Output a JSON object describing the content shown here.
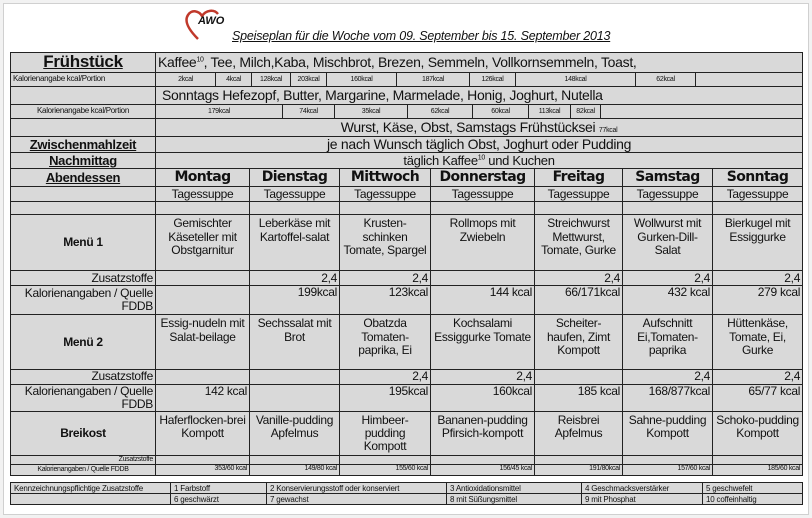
{
  "header": {
    "logo": "AWO",
    "title": "Speiseplan für die Woche vom 09. September  bis 15. September  2013",
    "brand_color": "#c0392b"
  },
  "breakfast": {
    "label": "Frühstück",
    "line1": "Kaffee",
    "line1_sup": "10",
    "line1_rest": ",  Tee, Milch,Kaba, Mischbrot, Brezen,  Semmeln, Vollkornsemmeln, Toast,",
    "kcal_label": "Kalorienangabe kcal/Portion",
    "kcal1": [
      "2kcal",
      "4kcal",
      "128kcal",
      "203kcal",
      "160kcal",
      "187kcal",
      "126kcal",
      "148kcal",
      "62kcal"
    ],
    "line2": "Sonntags Hefezopf, Butter, Margarine, Marmelade, Honig, Joghurt, Nutella",
    "kcal2": [
      "179kcal",
      "74kcal",
      "35kcal",
      "62kcal",
      "60kcal",
      "113kcal",
      "82kcal"
    ],
    "line3": "Wurst, Käse, Obst, Samstags Frühstücksei",
    "line3_kcal": "77kcal"
  },
  "zwischen": {
    "label": "Zwischenmahlzeit",
    "text": "je nach Wunsch täglich Obst, Joghurt oder Pudding"
  },
  "nachmittag": {
    "label": "Nachmittag",
    "text": "täglich Kaffee",
    "sup": "10",
    "rest": " und Kuchen"
  },
  "abend": {
    "label": "Abendessen",
    "days": [
      "Montag",
      "Dienstag",
      "Mittwoch",
      "Donnerstag",
      "Freitag",
      "Samstag",
      "Sonntag"
    ],
    "soup": [
      "Tagessuppe",
      "Tagessuppe",
      "Tagessuppe",
      "Tagessuppe",
      "Tagessuppe",
      "Tagessuppe",
      "Tagessuppe"
    ],
    "zusatz_label": "Zusatzstoffe",
    "kal_label": "Kalorienangaben / Quelle FDDB",
    "menu1": {
      "label": "Menü 1",
      "items": [
        "Gemischter Käseteller mit Obstgarnitur",
        "Leberkäse mit Kartoffel-salat",
        "Krusten-schinken Tomate, Spargel",
        "Rollmops mit Zwiebeln",
        "Streichwurst Mettwurst, Tomate, Gurke",
        "Wollwurst mit Gurken-Dill-Salat",
        "Bierkugel mit Essiggurke"
      ],
      "zusatz": [
        "",
        "2,4",
        "2,4",
        "",
        "2,4",
        "2,4",
        "2,4"
      ],
      "kcal": [
        "",
        "199kcal",
        "123kcal",
        "144 kcal",
        "66/171kcal",
        "432 kcal",
        "279 kcal"
      ]
    },
    "menu2": {
      "label": "Menü 2",
      "items": [
        "Essig-nudeln mit Salat-beilage",
        "Sechssalat mit Brot",
        "Obatzda Tomaten-paprika, Ei",
        "Kochsalami Essiggurke Tomate",
        "Scheiter-haufen, Zimt Kompott",
        "Aufschnitt Ei,Tomaten-paprika",
        "Hüttenkäse, Tomate, Ei, Gurke"
      ],
      "zusatz": [
        "",
        "",
        "2,4",
        "2,4",
        "",
        "2,4",
        "2,4"
      ],
      "kcal": [
        "142 kcal",
        "",
        "195kcal",
        "160kcal",
        "185 kcal",
        "168/877kcal",
        "65/77 kcal"
      ]
    },
    "breikost": {
      "label": "Breikost",
      "items": [
        "Haferflocken-brei Kompott",
        "Vanille-pudding Apfelmus",
        "Himbeer-pudding Kompott",
        "Bananen-pudding Pfirsich-kompott",
        "Reisbrei  Apfelmus",
        "Sahne-pudding Kompott",
        "Schoko-pudding Kompott"
      ],
      "zusatz": [
        "",
        "",
        "",
        "",
        "",
        "",
        ""
      ],
      "kcal": [
        "353/60 kcal",
        "149/80 kcal",
        "155/60 kcal",
        "156/45 kcal",
        "191/80kcal",
        "157/60 kcal",
        "185/60 kcal"
      ]
    }
  },
  "legend": {
    "label": "Kennzeichnungspflichtige Zusatzstoffe",
    "row1": [
      "1  Farbstoff",
      "2  Konservierungsstoff oder konserviert",
      "3  Antioxidationsmittel",
      "4  Geschmacksverstärker",
      "5  geschwefelt"
    ],
    "row2": [
      "6  geschwärzt",
      "7  gewachst",
      "8  mit Süßungsmittel",
      "9  mit Phosphat",
      "10  coffeinhaltig"
    ]
  }
}
